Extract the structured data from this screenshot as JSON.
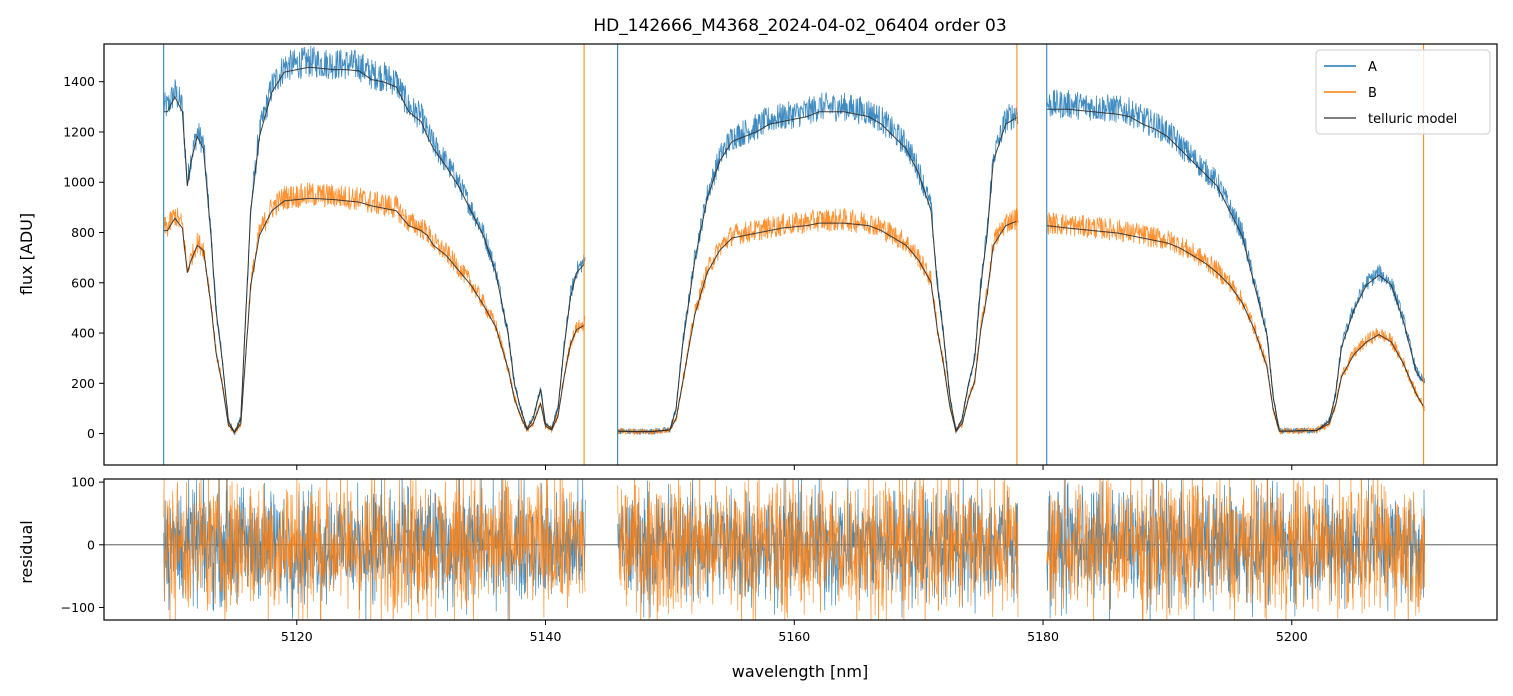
{
  "chart_data": {
    "type": "line",
    "title": "HD_142666_M4368_2024-04-02_06404  order 03",
    "xlabel": "wavelength [nm]",
    "xlim": [
      5104.5,
      5216.5
    ],
    "xticks": [
      5120,
      5140,
      5160,
      5180,
      5200
    ],
    "panels": [
      {
        "ylabel": "flux [ADU]",
        "ylim": [
          -125,
          1550
        ],
        "yticks": [
          0,
          200,
          400,
          600,
          800,
          1000,
          1200,
          1400
        ],
        "legend": {
          "placement": "top-right",
          "entries": [
            "A",
            "B",
            "telluric model"
          ]
        },
        "series": [
          {
            "name": "A",
            "color": "#1f77b4",
            "segments": [
              [
                5109.3,
                5143.2
              ],
              [
                5145.8,
                5178.0
              ],
              [
                5180.3,
                5210.7
              ]
            ],
            "x": [
              5109.6,
              5110.2,
              5110.8,
              5111.2,
              5111.5,
              5112.0,
              5112.5,
              5113.1,
              5113.5,
              5114.0,
              5114.5,
              5115.0,
              5115.5,
              5116.3,
              5117.0,
              5118.0,
              5119.0,
              5120.0,
              5121.0,
              5122.0,
              5123.0,
              5124.0,
              5125.0,
              5126.0,
              5127.0,
              5128.0,
              5129.0,
              5130.0,
              5130.5,
              5131.0,
              5132.0,
              5133.0,
              5134.0,
              5135.0,
              5136.0,
              5137.0,
              5137.5,
              5138.0,
              5138.5,
              5139.0,
              5139.6,
              5140.0,
              5140.5,
              5141.0,
              5141.5,
              5142.0,
              5142.5,
              5143.2,
              5145.8,
              5147.0,
              5148.5,
              5150.0,
              5150.5,
              5151.0,
              5152.0,
              5153.0,
              5154.0,
              5155.0,
              5156.0,
              5157.0,
              5158.0,
              5159.0,
              5160.0,
              5161.0,
              5162.0,
              5163.0,
              5164.0,
              5165.0,
              5166.0,
              5167.0,
              5168.0,
              5169.0,
              5170.0,
              5171.0,
              5171.5,
              5172.0,
              5172.5,
              5173.0,
              5173.5,
              5174.0,
              5174.5,
              5175.0,
              5175.5,
              5176.0,
              5177.0,
              5178.0,
              5180.3,
              5182.0,
              5184.0,
              5186.0,
              5187.0,
              5188.0,
              5189.0,
              5190.0,
              5191.0,
              5192.0,
              5193.0,
              5194.0,
              5195.0,
              5196.0,
              5197.0,
              5198.0,
              5198.5,
              5199.0,
              5200.0,
              5201.0,
              5202.0,
              5203.0,
              5203.5,
              5204.0,
              5205.0,
              5206.0,
              5207.0,
              5208.0,
              5209.0,
              5210.0,
              5210.7
            ],
            "y": [
              1300,
              1360,
              1300,
              1000,
              1100,
              1200,
              1150,
              800,
              500,
              300,
              50,
              5,
              60,
              900,
              1200,
              1380,
              1460,
              1470,
              1480,
              1475,
              1470,
              1470,
              1465,
              1430,
              1420,
              1400,
              1300,
              1260,
              1200,
              1150,
              1080,
              1000,
              900,
              800,
              650,
              400,
              200,
              100,
              20,
              60,
              180,
              40,
              20,
              100,
              350,
              550,
              650,
              690,
              10,
              8,
              8,
              15,
              100,
              350,
              700,
              950,
              1100,
              1180,
              1200,
              1220,
              1250,
              1260,
              1270,
              1280,
              1300,
              1300,
              1300,
              1290,
              1280,
              1250,
              1200,
              1150,
              1050,
              900,
              600,
              400,
              150,
              10,
              60,
              200,
              300,
              600,
              800,
              1100,
              1250,
              1280,
              1310,
              1310,
              1300,
              1290,
              1280,
              1250,
              1230,
              1200,
              1150,
              1100,
              1050,
              1000,
              900,
              800,
              600,
              400,
              150,
              10,
              10,
              12,
              12,
              50,
              150,
              350,
              500,
              600,
              640,
              600,
              450,
              250,
              200
            ]
          },
          {
            "name": "B",
            "color": "#ff7f0e",
            "segments": [
              [
                5109.3,
                5143.2
              ],
              [
                5145.8,
                5178.0
              ],
              [
                5180.3,
                5210.7
              ]
            ],
            "x": [
              5109.6,
              5110.2,
              5110.8,
              5111.2,
              5111.5,
              5112.0,
              5112.5,
              5113.1,
              5113.5,
              5114.0,
              5114.5,
              5115.0,
              5115.5,
              5116.3,
              5117.0,
              5118.0,
              5119.0,
              5120.0,
              5121.0,
              5122.0,
              5123.0,
              5124.0,
              5125.0,
              5126.0,
              5127.0,
              5128.0,
              5129.0,
              5130.0,
              5130.5,
              5131.0,
              5132.0,
              5133.0,
              5134.0,
              5135.0,
              5136.0,
              5137.0,
              5137.5,
              5138.0,
              5138.5,
              5139.0,
              5139.6,
              5140.0,
              5140.5,
              5141.0,
              5141.5,
              5142.0,
              5142.5,
              5143.2,
              5145.8,
              5147.0,
              5148.5,
              5150.0,
              5150.5,
              5151.0,
              5152.0,
              5153.0,
              5154.0,
              5155.0,
              5156.0,
              5157.0,
              5158.0,
              5159.0,
              5160.0,
              5161.0,
              5162.0,
              5163.0,
              5164.0,
              5165.0,
              5166.0,
              5167.0,
              5168.0,
              5169.0,
              5170.0,
              5171.0,
              5171.5,
              5172.0,
              5172.5,
              5173.0,
              5173.5,
              5174.0,
              5174.5,
              5175.0,
              5175.5,
              5176.0,
              5177.0,
              5178.0,
              5180.3,
              5182.0,
              5184.0,
              5186.0,
              5187.0,
              5188.0,
              5189.0,
              5190.0,
              5191.0,
              5192.0,
              5193.0,
              5194.0,
              5195.0,
              5196.0,
              5197.0,
              5198.0,
              5198.5,
              5199.0,
              5200.0,
              5201.0,
              5202.0,
              5203.0,
              5203.5,
              5204.0,
              5205.0,
              5206.0,
              5207.0,
              5208.0,
              5209.0,
              5210.0,
              5210.7
            ],
            "y": [
              820,
              870,
              830,
              650,
              700,
              760,
              740,
              520,
              330,
              200,
              35,
              5,
              40,
              600,
              800,
              900,
              940,
              945,
              950,
              948,
              945,
              940,
              935,
              920,
              910,
              900,
              840,
              820,
              800,
              760,
              720,
              660,
              600,
              520,
              430,
              260,
              140,
              70,
              15,
              40,
              120,
              30,
              15,
              70,
              230,
              360,
              420,
              440,
              10,
              8,
              8,
              15,
              60,
              200,
              480,
              650,
              740,
              790,
              800,
              810,
              820,
              830,
              835,
              840,
              850,
              850,
              850,
              845,
              840,
              820,
              790,
              760,
              700,
              610,
              420,
              280,
              110,
              10,
              40,
              140,
              210,
              420,
              560,
              760,
              840,
              860,
              840,
              830,
              820,
              810,
              800,
              790,
              780,
              770,
              750,
              720,
              690,
              650,
              600,
              530,
              420,
              270,
              100,
              10,
              10,
              12,
              12,
              40,
              110,
              230,
              320,
              370,
              400,
              370,
              280,
              160,
              100
            ]
          },
          {
            "name": "telluric model",
            "color": "#2b2b2b",
            "segments": [
              [
                5109.3,
                5143.2
              ],
              [
                5145.8,
                5178.0
              ],
              [
                5180.3,
                5210.7
              ]
            ],
            "x": [],
            "y": []
          }
        ]
      },
      {
        "ylabel": "residual",
        "ylim": [
          -120,
          105
        ],
        "yticks": [
          -100,
          0,
          100
        ],
        "series": [
          {
            "name": "A",
            "color": "#1f77b4",
            "noise_amplitude": 45
          },
          {
            "name": "B",
            "color": "#ff7f0e",
            "noise_amplitude": 55
          }
        ]
      }
    ]
  }
}
